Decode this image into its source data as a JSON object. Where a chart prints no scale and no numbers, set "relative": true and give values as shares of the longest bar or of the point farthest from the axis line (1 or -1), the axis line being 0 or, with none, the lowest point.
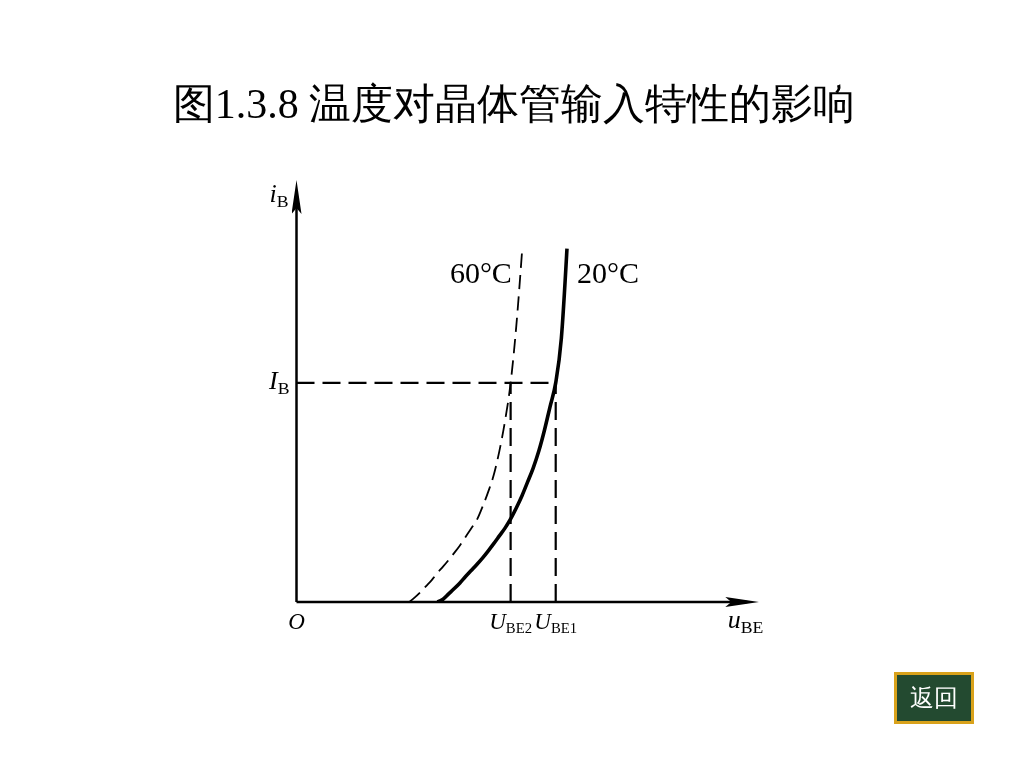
{
  "chart_data": {
    "type": "line",
    "title": "图1.3.8 温度对晶体管输入特性的影响",
    "xlabel": "u$_{BE}$",
    "ylabel": "i$_{B}$",
    "relative": true,
    "categories": [
      "O",
      null,
      null,
      null,
      null,
      null,
      null,
      null,
      null,
      null,
      null,
      null,
      null,
      null,
      null,
      null,
      null,
      null,
      null,
      null,
      null,
      null,
      null,
      null,
      null,
      null,
      null,
      null,
      null,
      null,
      null,
      null,
      null,
      null,
      null,
      null,
      null,
      null,
      "U$_{BE2}$",
      null,
      null,
      null,
      null,
      null,
      null,
      null,
      "U$_{BE1}$",
      null,
      null,
      null,
      null,
      null,
      null,
      null,
      null,
      null,
      null,
      null,
      null,
      null,
      null,
      null,
      null,
      null,
      null,
      null,
      null,
      null,
      null,
      null,
      null,
      null,
      null,
      null,
      null,
      null,
      null,
      null,
      null,
      null,
      null
    ],
    "series": [
      {
        "name": "60°C",
        "color": "#000000",
        "line_style": "dashed",
        "values": [
          null,
          null,
          null,
          null,
          null,
          null,
          null,
          null,
          null,
          null,
          null,
          null,
          null,
          null,
          null,
          null,
          null,
          null,
          null,
          null,
          0,
          0.013,
          0.028,
          0.045,
          0.062,
          0.082,
          0.1,
          0.119,
          0.139,
          0.16,
          0.184,
          0.208,
          0.232,
          0.269,
          0.311,
          0.359,
          0.427,
          0.512,
          0.62,
          0.78,
          0.986,
          null,
          null,
          null,
          null,
          null,
          null,
          null,
          null,
          null,
          null,
          null,
          null,
          null,
          null,
          null,
          null,
          null,
          null,
          null,
          null,
          null,
          null,
          null,
          null,
          null,
          null,
          null,
          null,
          null,
          null,
          null,
          null,
          null,
          null,
          null,
          null,
          null,
          null,
          null,
          null
        ]
      },
      {
        "name": "20°C",
        "color": "#000000",
        "line_style": "solid",
        "values": [
          null,
          null,
          null,
          null,
          null,
          null,
          null,
          null,
          null,
          null,
          null,
          null,
          null,
          null,
          null,
          null,
          null,
          null,
          null,
          null,
          null,
          null,
          null,
          null,
          null,
          0,
          0.008,
          0.023,
          0.038,
          0.054,
          0.072,
          0.089,
          0.106,
          0.124,
          0.144,
          0.165,
          0.187,
          0.209,
          0.235,
          0.266,
          0.3,
          0.339,
          0.379,
          0.427,
          0.486,
          0.553,
          0.62,
          0.746,
          1,
          null,
          null,
          null,
          null,
          null,
          null,
          null,
          null,
          null,
          null,
          null,
          null,
          null,
          null,
          null,
          null,
          null,
          null,
          null,
          null,
          null,
          null,
          null,
          null,
          null,
          null,
          null,
          null,
          null,
          null,
          null,
          null
        ]
      }
    ],
    "ref_lines": [
      {
        "axis": "y",
        "value": 0.62,
        "label": "I$_{B}$",
        "line_style": "dashed",
        "color": "#000000"
      },
      {
        "axis": "x",
        "value": "U$_{BE2}$",
        "line_style": "dashed",
        "color": "#000000"
      },
      {
        "axis": "x",
        "value": "U$_{BE1}$",
        "line_style": "dashed",
        "color": "#000000"
      }
    ],
    "annotations": [
      "返回"
    ]
  }
}
